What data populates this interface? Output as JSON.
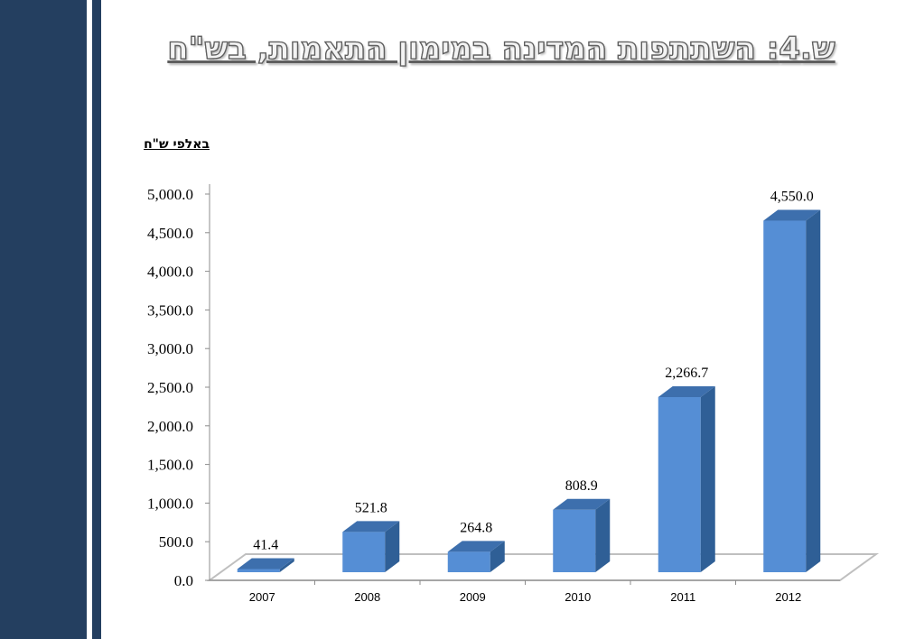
{
  "slide": {
    "title": "ש.4: השתתפות המדינה במימון התאמות, בש\"ח",
    "units": "באלפי ש\"ח"
  },
  "chart_data": {
    "type": "bar",
    "title": "",
    "xlabel": "",
    "ylabel": "",
    "categories": [
      "2007",
      "2008",
      "2009",
      "2010",
      "2011",
      "2012"
    ],
    "values": [
      41.4,
      521.8,
      264.8,
      808.9,
      2266.7,
      4550.0
    ],
    "data_labels": [
      "41.4",
      "521.8",
      "264.8",
      "808.9",
      "2,266.7",
      "4,550.0"
    ],
    "ylim": [
      0,
      5000
    ],
    "yticks": [
      0,
      500,
      1000,
      1500,
      2000,
      2500,
      3000,
      3500,
      4000,
      4500,
      5000
    ],
    "ytick_labels": [
      "0.0",
      "500.0",
      "1,000.0",
      "1,500.0",
      "2,000.0",
      "2,500.0",
      "3,000.0",
      "3,500.0",
      "4,000.0",
      "4,500.0",
      "5,000.0"
    ],
    "grid": false,
    "legend": "none",
    "bar_color": "#558ed5",
    "bar_side_color": "#2f5f96",
    "bar_top_color": "#3d6fad"
  },
  "colors": {
    "sidebar": "#243f60"
  }
}
